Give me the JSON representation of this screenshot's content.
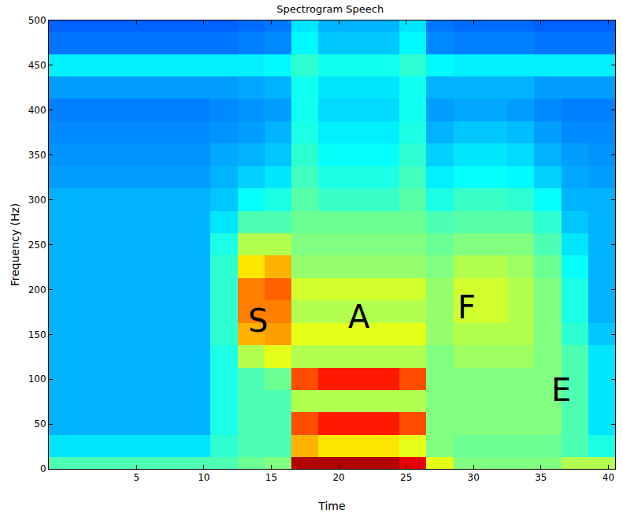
{
  "chart_data": {
    "type": "heatmap",
    "title": "Spectrogram Speech",
    "x_label": "Time",
    "y_label": "Frequency (Hz)",
    "xlim": [
      -1.5,
      40.5
    ],
    "xticks": [
      5,
      10,
      15,
      20,
      25,
      30,
      35,
      40
    ],
    "ylim": [
      0,
      500
    ],
    "yticks": [
      0,
      50,
      100,
      150,
      200,
      250,
      300,
      350,
      400,
      450,
      500
    ],
    "grid": false,
    "zlim": [
      0,
      10
    ],
    "x_edges": [
      -1.5,
      0.5,
      2.5,
      4.5,
      6.5,
      8.5,
      10.5,
      12.5,
      14.5,
      16.5,
      18.5,
      20.5,
      22.5,
      24.5,
      26.5,
      28.5,
      30.5,
      32.5,
      34.5,
      36.5,
      38.5,
      40.5
    ],
    "y": [
      0,
      25,
      50,
      75,
      100,
      125,
      150,
      175,
      200,
      225,
      250,
      275,
      300,
      325,
      350,
      375,
      400,
      425,
      450,
      475,
      500
    ],
    "cells": [
      [
        4.5,
        4.5,
        4.5,
        4.5,
        4.5,
        4.5,
        4.5,
        4.8,
        5,
        9.5,
        9.5,
        9.5,
        9.5,
        9,
        6,
        5,
        5,
        5,
        5,
        5.5,
        5.5
      ],
      [
        3.5,
        3.5,
        3.5,
        3.5,
        3.5,
        3.5,
        4.2,
        4.5,
        4.5,
        7,
        6.5,
        6.5,
        6.5,
        6,
        5,
        4.8,
        4.8,
        4.8,
        4.8,
        4.5,
        4
      ],
      [
        3,
        3,
        3,
        3,
        3,
        3,
        4,
        4.5,
        4.5,
        8,
        8.5,
        8.5,
        8.5,
        8,
        5,
        5,
        5,
        5,
        5,
        4.5,
        3.5
      ],
      [
        3,
        3,
        3,
        3,
        3,
        3,
        4,
        4.5,
        4.5,
        5.5,
        5.5,
        5.5,
        5.5,
        5.5,
        5,
        5,
        5,
        5,
        5,
        4.5,
        3.5
      ],
      [
        3,
        3,
        3,
        3,
        3,
        3,
        4,
        4.5,
        4.8,
        8,
        8.5,
        8.5,
        8.5,
        8,
        5,
        5,
        5,
        5,
        5,
        4.5,
        3.5
      ],
      [
        3,
        3,
        3,
        3,
        3,
        3,
        4,
        5.5,
        6,
        5.5,
        5.5,
        5.5,
        5.5,
        5.5,
        5,
        5.3,
        5.3,
        5.3,
        5,
        4.5,
        3.5
      ],
      [
        3,
        3,
        3,
        3,
        3,
        3,
        4.2,
        7,
        7.2,
        6,
        6,
        6,
        6,
        6,
        5.2,
        5.5,
        5.5,
        5.5,
        5,
        4.2,
        3.2
      ],
      [
        3,
        3,
        3,
        3,
        3,
        3,
        4.2,
        7.5,
        7.5,
        5.5,
        5.5,
        5.5,
        5.5,
        5.5,
        5.2,
        5.8,
        5.8,
        5.5,
        5,
        4,
        3
      ],
      [
        3,
        3,
        3,
        3,
        3,
        3,
        4.2,
        7.5,
        7.8,
        5.8,
        5.8,
        5.8,
        5.8,
        5.8,
        5.2,
        5.8,
        5.8,
        5.5,
        5,
        4,
        3
      ],
      [
        3,
        3,
        3,
        3,
        3,
        3,
        4.2,
        6.5,
        7,
        5.2,
        5.2,
        5.2,
        5.2,
        5.2,
        5,
        5.5,
        5.5,
        5.3,
        4.8,
        3.8,
        3
      ],
      [
        3,
        3,
        3,
        3,
        3,
        3,
        4,
        5.5,
        5.5,
        5,
        5,
        5,
        5,
        5,
        4.8,
        5,
        5,
        5,
        4.5,
        3.5,
        3
      ],
      [
        3,
        3,
        3,
        3,
        3,
        3,
        3.5,
        4.5,
        4.5,
        4.8,
        4.8,
        4.8,
        4.8,
        4.8,
        4.5,
        4.6,
        4.6,
        4.6,
        4.2,
        3.2,
        3
      ],
      [
        3,
        3,
        3,
        3,
        3,
        3,
        3.2,
        3.8,
        4,
        4.6,
        4.3,
        4.3,
        4.3,
        4.6,
        4,
        4.3,
        4.3,
        4.2,
        3.8,
        3,
        3
      ],
      [
        2.8,
        2.8,
        2.8,
        2.8,
        2.8,
        2.8,
        3,
        3.3,
        3.5,
        4.4,
        4,
        4,
        4,
        4.4,
        3.6,
        3.8,
        3.8,
        3.7,
        3.3,
        2.9,
        2.8
      ],
      [
        2.7,
        2.7,
        2.7,
        2.7,
        2.7,
        2.7,
        2.9,
        3,
        3.2,
        4.2,
        3.8,
        3.8,
        3.8,
        4.2,
        3.3,
        3.5,
        3.5,
        3.4,
        3,
        2.8,
        2.7
      ],
      [
        2.6,
        2.6,
        2.6,
        2.6,
        2.6,
        2.6,
        2.7,
        2.8,
        3,
        4,
        3.6,
        3.6,
        3.6,
        4,
        3,
        3.2,
        3.2,
        3.1,
        2.8,
        2.6,
        2.6
      ],
      [
        2.5,
        2.5,
        2.5,
        2.5,
        2.5,
        2.5,
        2.6,
        2.7,
        2.8,
        3.9,
        3.4,
        3.4,
        3.4,
        3.9,
        2.8,
        2.9,
        2.9,
        2.8,
        2.6,
        2.5,
        2.5
      ],
      [
        2.8,
        2.8,
        2.8,
        2.8,
        2.8,
        2.8,
        2.8,
        2.9,
        3,
        3.9,
        3.5,
        3.5,
        3.5,
        3.9,
        3,
        3,
        3,
        3,
        2.8,
        2.8,
        2.8
      ],
      [
        3.6,
        3.6,
        3.6,
        3.6,
        3.6,
        3.6,
        3.6,
        3.6,
        3.7,
        4.2,
        3.9,
        3.9,
        3.9,
        4.2,
        3.7,
        3.6,
        3.6,
        3.6,
        3.6,
        3.6,
        3.6
      ],
      [
        2.4,
        2.4,
        2.4,
        2.4,
        2.4,
        2.4,
        2.4,
        2.5,
        2.6,
        3.7,
        3.2,
        3.2,
        3.2,
        3.7,
        2.6,
        2.5,
        2.5,
        2.5,
        2.4,
        2.4,
        2.4
      ],
      [
        2.2,
        2.2,
        2.2,
        2.2,
        2.2,
        2.2,
        2.2,
        2.3,
        2.4,
        3.5,
        3,
        3,
        3,
        3.5,
        2.4,
        2.3,
        2.3,
        2.3,
        2.2,
        2.2,
        2.2
      ]
    ],
    "annotations": [
      {
        "text": "S",
        "x": 14,
        "y": 165
      },
      {
        "text": "A",
        "x": 21.5,
        "y": 170
      },
      {
        "text": "F",
        "x": 29.5,
        "y": 180
      },
      {
        "text": "E",
        "x": 36.5,
        "y": 88
      }
    ]
  }
}
